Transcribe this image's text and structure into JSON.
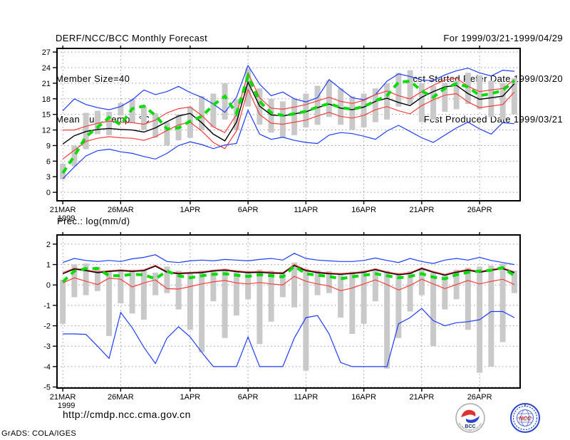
{
  "header": {
    "left": [
      "DERF/NCC/BCC Monthly Forecast",
      "Member Size=40",
      "Mean Surf. Temp.: °C"
    ],
    "right": [
      "For 1999/03/21-1999/04/29",
      "Fcst Started Refer Date 1999/03/20",
      "Fcst Produced Date 1999/03/21"
    ]
  },
  "footer": {
    "url": "http://cmdp.ncc.cma.gov.cn",
    "credit": "GrADS: COLA/IGES",
    "logos": [
      {
        "label": "BCC",
        "sub": "BEIJING CLIMATE CENTER"
      },
      {
        "label": "NCC"
      }
    ]
  },
  "colors": {
    "ensemble_minmax": "#1e3cff",
    "ensemble_std": "#fa3c3c",
    "ensemble_mean": "#000000",
    "observation": "#00dc00",
    "spread_bar": "#c9c9c9",
    "grid": "#999999"
  },
  "chart_data": [
    {
      "type": "line",
      "title": "Mean Surf. Temp.: °C",
      "xlim": [
        -0.5,
        39.5
      ],
      "ylim": [
        -1.63,
        27.7
      ],
      "yticks": [
        0,
        3,
        6,
        9,
        12,
        15,
        18,
        21,
        24,
        27
      ],
      "x_ticks": [
        {
          "day": 0,
          "label": "21MAR",
          "sub": "1999"
        },
        {
          "day": 5,
          "label": "26MAR"
        },
        {
          "day": 11,
          "label": "1APR"
        },
        {
          "day": 16,
          "label": "6APR"
        },
        {
          "day": 21,
          "label": "11APR"
        },
        {
          "day": 26,
          "label": "16APR"
        },
        {
          "day": 31,
          "label": "21APR"
        },
        {
          "day": 36,
          "label": "26APR"
        }
      ],
      "series": [
        {
          "name": "ensemble-max",
          "color": "#1e3cff",
          "width": 1.2,
          "values": [
            15.7,
            18.0,
            16.9,
            16.3,
            15.9,
            16.5,
            17.8,
            19.7,
            18.8,
            19.4,
            20.4,
            19.2,
            18.3,
            17.0,
            15.4,
            18.3,
            24.4,
            20.8,
            18.6,
            19.3,
            18.0,
            17.4,
            18.2,
            21.7,
            19.9,
            18.2,
            17.8,
            18.8,
            21.4,
            22.8,
            22.3,
            21.6,
            21.5,
            22.6,
            23.4,
            23.9,
            23.0,
            22.4,
            23.5,
            23.3
          ]
        },
        {
          "name": "mean-plus-std",
          "color": "#fa3c3c",
          "width": 1.2,
          "values": [
            12.0,
            12.0,
            12.7,
            13.3,
            13.7,
            13.5,
            13.4,
            13.1,
            13.9,
            15.3,
            16.1,
            16.4,
            14.8,
            12.6,
            11.5,
            15.0,
            23.0,
            18.2,
            16.2,
            16.0,
            16.4,
            16.9,
            17.6,
            18.3,
            17.5,
            17.1,
            17.7,
            18.8,
            19.5,
            18.6,
            18.0,
            19.4,
            20.6,
            21.6,
            22.0,
            20.4,
            19.4,
            19.7,
            20.0,
            21.7
          ]
        },
        {
          "name": "ensemble-mean",
          "color": "#000000",
          "width": 1.4,
          "values": [
            9.3,
            10.9,
            11.7,
            12.1,
            12.3,
            12.1,
            12.0,
            11.6,
            12.4,
            13.6,
            14.7,
            15.2,
            13.4,
            11.2,
            9.9,
            13.5,
            21.2,
            16.6,
            14.9,
            14.7,
            15.1,
            15.5,
            16.3,
            17.0,
            16.2,
            15.9,
            16.4,
            17.5,
            18.1,
            17.3,
            16.7,
            18.3,
            19.4,
            20.3,
            20.6,
            19.0,
            17.9,
            18.2,
            18.5,
            20.9
          ]
        },
        {
          "name": "mean-minus-std",
          "color": "#fa3c3c",
          "width": 1.2,
          "values": [
            6.4,
            8.1,
            9.8,
            10.4,
            10.7,
            10.5,
            10.4,
            10.0,
            10.7,
            11.9,
            13.0,
            13.5,
            11.8,
            9.6,
            8.4,
            11.8,
            19.8,
            15.0,
            13.3,
            13.1,
            13.5,
            13.9,
            14.7,
            15.4,
            14.6,
            14.3,
            14.8,
            15.9,
            16.5,
            15.7,
            15.1,
            16.7,
            17.8,
            18.7,
            19.0,
            17.4,
            16.3,
            16.6,
            16.9,
            19.3
          ]
        },
        {
          "name": "ensemble-min",
          "color": "#1e3cff",
          "width": 1.2,
          "values": [
            2.6,
            4.9,
            7.0,
            8.0,
            8.3,
            7.8,
            7.5,
            6.9,
            6.4,
            7.5,
            9.0,
            9.7,
            9.2,
            8.4,
            9.1,
            9.4,
            15.8,
            11.2,
            10.2,
            10.6,
            10.0,
            9.6,
            9.4,
            11.0,
            11.5,
            11.3,
            10.8,
            10.2,
            11.8,
            12.9,
            11.7,
            10.5,
            9.6,
            11.0,
            12.4,
            13.5,
            12.2,
            11.2,
            13.4,
            13.2
          ]
        },
        {
          "name": "observation-dashed",
          "color": "#00dc00",
          "width": 4,
          "dash": "9,7",
          "values": [
            3.7,
            7.0,
            10.7,
            12.5,
            14.4,
            13.0,
            16.1,
            16.6,
            14.8,
            12.2,
            12.4,
            13.7,
            14.6,
            16.8,
            18.5,
            15.2,
            22.4,
            17.5,
            15.3,
            14.8,
            15.1,
            15.6,
            16.4,
            17.1,
            16.3,
            16.0,
            16.5,
            17.6,
            18.6,
            21.2,
            21.4,
            19.5,
            18.3,
            20.0,
            20.9,
            20.3,
            18.6,
            19.0,
            19.6,
            21.5
          ]
        }
      ],
      "bars": {
        "lo": [
          2.5,
          5.0,
          8.3,
          11.2,
          11.0,
          14.8,
          13.5,
          12.0,
          10.5,
          9.0,
          10.0,
          10.5,
          12.0,
          12.5,
          14.0,
          12.0,
          16.5,
          13.0,
          11.5,
          10.5,
          11.0,
          12.5,
          13.0,
          14.5,
          13.0,
          12.0,
          12.5,
          13.5,
          14.0,
          16.5,
          17.0,
          13.5,
          14.0,
          15.5,
          16.0,
          17.0,
          16.0,
          14.5,
          14.0,
          15.0
        ],
        "hi": [
          5.5,
          9.0,
          15.3,
          15.7,
          15.5,
          17.2,
          18.0,
          16.5,
          15.2,
          13.5,
          15.0,
          16.5,
          18.5,
          19.0,
          21.0,
          18.0,
          23.8,
          20.0,
          18.0,
          17.5,
          18.0,
          19.0,
          20.5,
          21.5,
          20.0,
          18.5,
          19.0,
          20.0,
          21.0,
          23.0,
          23.5,
          21.0,
          20.5,
          21.0,
          21.5,
          23.0,
          22.5,
          21.5,
          21.0,
          22.0
        ]
      }
    },
    {
      "type": "line",
      "title": "Prec.: log(mm/d)",
      "xlim": [
        -0.5,
        39.5
      ],
      "ylim": [
        -5.05,
        2.45
      ],
      "yticks": [
        2,
        1,
        0,
        -1,
        -2,
        -3,
        -4,
        -5
      ],
      "x_ticks": [
        {
          "day": 0,
          "label": "21MAR",
          "sub": "1999"
        },
        {
          "day": 5,
          "label": "26MAR"
        },
        {
          "day": 11,
          "label": "1APR"
        },
        {
          "day": 16,
          "label": "6APR"
        },
        {
          "day": 21,
          "label": "11APR"
        },
        {
          "day": 26,
          "label": "16APR"
        },
        {
          "day": 31,
          "label": "21APR"
        },
        {
          "day": 36,
          "label": "26APR"
        }
      ],
      "series": [
        {
          "name": "ensemble-max",
          "color": "#1e3cff",
          "width": 1.2,
          "values": [
            1.1,
            1.3,
            1.2,
            1.15,
            1.2,
            1.15,
            1.28,
            1.35,
            1.48,
            1.15,
            1.1,
            1.18,
            1.22,
            1.18,
            1.25,
            1.22,
            1.18,
            1.25,
            1.3,
            1.22,
            1.55,
            1.3,
            1.22,
            1.18,
            1.15,
            1.15,
            1.2,
            1.32,
            1.2,
            1.1,
            1.3,
            1.15,
            1.05,
            1.22,
            1.3,
            1.22,
            1.35,
            1.2,
            1.1,
            1.0
          ]
        },
        {
          "name": "mean-plus-std",
          "color": "#fa3c3c",
          "width": 1.2,
          "values": [
            0.6,
            0.82,
            0.74,
            0.64,
            0.7,
            0.74,
            0.7,
            0.74,
            0.96,
            0.66,
            0.59,
            0.62,
            0.64,
            0.72,
            0.76,
            0.69,
            0.64,
            0.66,
            0.63,
            0.6,
            1.0,
            0.74,
            0.64,
            0.59,
            0.56,
            0.6,
            0.66,
            0.79,
            0.64,
            0.54,
            0.6,
            0.84,
            0.66,
            0.52,
            0.66,
            0.76,
            0.66,
            0.76,
            0.84,
            0.64
          ]
        },
        {
          "name": "ensemble-mean",
          "color": "#000000",
          "width": 1.4,
          "values": [
            0.55,
            0.78,
            0.7,
            0.6,
            0.66,
            0.7,
            0.66,
            0.7,
            0.92,
            0.62,
            0.55,
            0.58,
            0.6,
            0.68,
            0.72,
            0.65,
            0.6,
            0.62,
            0.58,
            0.56,
            0.95,
            0.7,
            0.6,
            0.55,
            0.52,
            0.56,
            0.62,
            0.75,
            0.6,
            0.5,
            0.56,
            0.8,
            0.62,
            0.48,
            0.62,
            0.72,
            0.62,
            0.72,
            0.8,
            0.6
          ]
        },
        {
          "name": "mean-minus-std",
          "color": "#fa3c3c",
          "width": 1.2,
          "values": [
            0.1,
            0.35,
            0.18,
            0.02,
            0.33,
            0.28,
            -0.1,
            0.1,
            0.25,
            -0.18,
            -0.2,
            -0.08,
            0.05,
            0.15,
            0.22,
            0.1,
            0.05,
            0.12,
            0.05,
            0.0,
            0.42,
            0.18,
            0.05,
            -0.05,
            -0.28,
            -0.15,
            0.05,
            0.25,
            0.02,
            -0.25,
            -0.02,
            0.28,
            0.05,
            -0.18,
            0.02,
            0.22,
            0.05,
            0.18,
            0.28,
            0.02
          ]
        },
        {
          "name": "ensemble-min",
          "color": "#1e3cff",
          "width": 1.2,
          "values": [
            -2.4,
            -2.4,
            -2.42,
            -3.0,
            -3.6,
            -1.35,
            -2.1,
            -3.05,
            -3.85,
            -2.6,
            -2.05,
            -2.55,
            -3.3,
            -4.0,
            -4.0,
            -4.0,
            -2.55,
            -4.0,
            -4.0,
            -4.0,
            -2.6,
            -1.6,
            -1.5,
            -2.4,
            -3.8,
            -4.0,
            -4.0,
            -4.0,
            -4.0,
            -1.9,
            -1.6,
            -1.15,
            -1.75,
            -2.0,
            -1.85,
            -1.8,
            -1.7,
            -1.3,
            -1.3,
            -1.6
          ]
        },
        {
          "name": "observation-dashed",
          "color": "#00dc00",
          "width": 4,
          "dash": "9,7",
          "values": [
            0.15,
            0.68,
            0.8,
            0.8,
            0.45,
            0.45,
            0.52,
            0.5,
            0.3,
            0.68,
            0.45,
            0.35,
            0.45,
            0.52,
            0.55,
            0.48,
            0.42,
            0.5,
            0.45,
            0.4,
            0.92,
            0.55,
            0.48,
            0.42,
            0.3,
            0.4,
            0.48,
            0.55,
            0.45,
            0.35,
            0.42,
            0.55,
            0.38,
            0.3,
            0.5,
            0.62,
            0.68,
            0.72,
            0.85,
            0.45
          ]
        }
      ],
      "bars": {
        "lo": [
          -1.9,
          -0.6,
          -0.5,
          -0.3,
          -2.5,
          -0.9,
          -1.4,
          -1.7,
          -0.5,
          -0.4,
          -1.2,
          -2.2,
          -3.3,
          -0.8,
          -2.6,
          -1.5,
          -0.7,
          -2.9,
          -1.8,
          -0.6,
          -1.1,
          -4.2,
          -0.5,
          -0.4,
          -1.6,
          -2.4,
          -1.9,
          -0.8,
          -4.1,
          -2.6,
          -1.3,
          -0.5,
          -3.0,
          -1.2,
          -0.7,
          -2.2,
          -4.3,
          -4.0,
          -2.8,
          -0.4
        ],
        "hi": [
          0.25,
          1.0,
          1.05,
          0.9,
          0.7,
          0.7,
          0.75,
          0.72,
          0.6,
          0.9,
          0.7,
          0.6,
          0.7,
          0.75,
          0.8,
          0.72,
          0.68,
          0.75,
          0.7,
          0.65,
          1.1,
          0.8,
          0.72,
          0.68,
          0.55,
          0.65,
          0.72,
          0.8,
          0.7,
          0.6,
          0.68,
          0.8,
          0.62,
          0.55,
          0.75,
          0.85,
          0.9,
          0.95,
          1.05,
          0.7
        ]
      }
    }
  ]
}
